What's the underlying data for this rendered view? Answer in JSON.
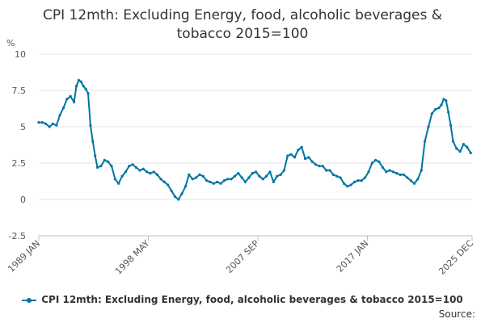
{
  "chart_data": {
    "type": "line",
    "title": "CPI 12mth: Excluding Energy, food, alcoholic beverages & tobacco 2015=100",
    "ylabel": "%",
    "xlabel": "",
    "ylim": [
      -2.5,
      10
    ],
    "yticks": [
      -2.5,
      0,
      2.5,
      5,
      7.5,
      10
    ],
    "ytick_labels": [
      "-2.5",
      "0",
      "2.5",
      "5",
      "7.5",
      "10"
    ],
    "xlim": [
      1989.0,
      2025.92
    ],
    "xticks": [
      1989.0,
      1998.33,
      2007.67,
      2017.0,
      2025.92
    ],
    "xtick_labels": [
      "1989 JAN",
      "1998 MAY",
      "2007 SEP",
      "2017 JAN",
      "2025 DEC"
    ],
    "grid": true,
    "color": "#0075a3",
    "series": [
      {
        "name": "CPI 12mth: Excluding Energy, food, alcoholic beverages & tobacco 2015=100",
        "x": [
          1989.0,
          1989.3,
          1989.6,
          1989.9,
          1990.2,
          1990.5,
          1990.8,
          1991.1,
          1991.4,
          1991.7,
          1992.0,
          1992.2,
          1992.4,
          1992.6,
          1992.8,
          1993.0,
          1993.2,
          1993.4,
          1993.6,
          1993.8,
          1994.0,
          1994.3,
          1994.6,
          1994.9,
          1995.2,
          1995.5,
          1995.8,
          1996.1,
          1996.4,
          1996.7,
          1997.0,
          1997.3,
          1997.6,
          1997.9,
          1998.2,
          1998.5,
          1998.8,
          1999.1,
          1999.4,
          1999.7,
          2000.0,
          2000.3,
          2000.6,
          2000.9,
          2001.2,
          2001.5,
          2001.8,
          2002.1,
          2002.4,
          2002.7,
          2003.0,
          2003.3,
          2003.6,
          2003.9,
          2004.2,
          2004.5,
          2004.8,
          2005.1,
          2005.4,
          2005.7,
          2006.0,
          2006.3,
          2006.6,
          2006.9,
          2007.2,
          2007.5,
          2007.8,
          2008.1,
          2008.4,
          2008.7,
          2009.0,
          2009.3,
          2009.6,
          2009.9,
          2010.2,
          2010.5,
          2010.8,
          2011.1,
          2011.4,
          2011.7,
          2012.0,
          2012.3,
          2012.6,
          2012.9,
          2013.2,
          2013.5,
          2013.8,
          2014.1,
          2014.4,
          2014.7,
          2015.0,
          2015.3,
          2015.6,
          2015.9,
          2016.2,
          2016.5,
          2016.8,
          2017.1,
          2017.4,
          2017.7,
          2018.0,
          2018.3,
          2018.6,
          2018.9,
          2019.2,
          2019.5,
          2019.8,
          2020.1,
          2020.4,
          2020.7,
          2021.0,
          2021.3,
          2021.6,
          2021.9,
          2022.2,
          2022.5,
          2022.8,
          2023.1,
          2023.3,
          2023.5,
          2023.7,
          2023.9,
          2024.1,
          2024.3,
          2024.6,
          2024.9,
          2025.2,
          2025.5,
          2025.8
        ],
        "values": [
          5.3,
          5.3,
          5.2,
          5.0,
          5.2,
          5.1,
          5.8,
          6.3,
          6.9,
          7.1,
          6.7,
          7.8,
          8.2,
          8.1,
          7.8,
          7.6,
          7.3,
          5.1,
          4.0,
          3.0,
          2.2,
          2.3,
          2.7,
          2.6,
          2.3,
          1.4,
          1.1,
          1.6,
          1.9,
          2.3,
          2.4,
          2.2,
          2.0,
          2.1,
          1.9,
          1.8,
          1.9,
          1.7,
          1.4,
          1.2,
          1.0,
          0.6,
          0.2,
          0.0,
          0.4,
          0.9,
          1.7,
          1.4,
          1.5,
          1.7,
          1.6,
          1.3,
          1.2,
          1.1,
          1.2,
          1.1,
          1.3,
          1.4,
          1.4,
          1.6,
          1.8,
          1.5,
          1.2,
          1.5,
          1.8,
          1.9,
          1.6,
          1.4,
          1.6,
          1.9,
          1.2,
          1.6,
          1.7,
          2.0,
          3.0,
          3.1,
          2.9,
          3.4,
          3.6,
          2.8,
          2.9,
          2.6,
          2.4,
          2.3,
          2.3,
          2.0,
          2.0,
          1.7,
          1.6,
          1.5,
          1.1,
          0.9,
          1.0,
          1.2,
          1.3,
          1.3,
          1.5,
          1.9,
          2.5,
          2.7,
          2.6,
          2.2,
          1.9,
          2.0,
          1.9,
          1.8,
          1.7,
          1.7,
          1.5,
          1.3,
          1.1,
          1.4,
          2.0,
          4.0,
          5.0,
          5.9,
          6.2,
          6.3,
          6.5,
          6.9,
          6.8,
          6.0,
          5.1,
          4.0,
          3.5,
          3.3,
          3.8,
          3.6,
          3.2
        ]
      }
    ]
  },
  "legend": {
    "label": "CPI 12mth: Excluding Energy, food, alcoholic beverages & tobacco 2015=100"
  },
  "source": "Source:"
}
